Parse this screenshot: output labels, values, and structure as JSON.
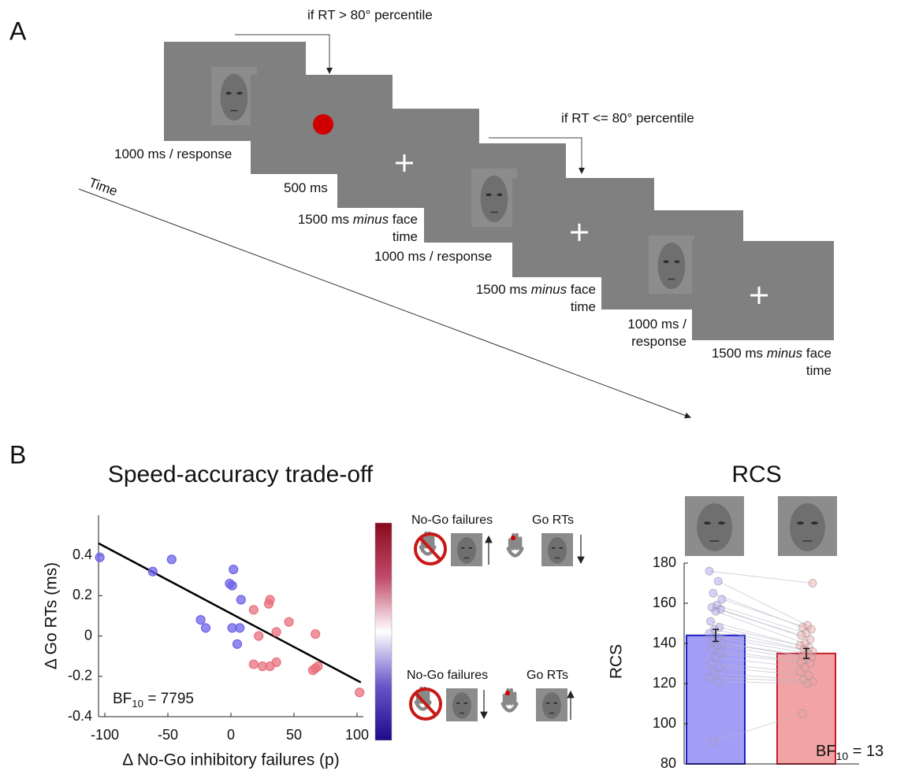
{
  "panel_a": {
    "label": "A",
    "conditions": [
      "if RT > 80° percentile",
      "if RT <= 80° percentile"
    ],
    "time_label": "Time",
    "captions": [
      {
        "lines": [
          [
            {
              "text": "1000 ms / response"
            }
          ]
        ]
      },
      {
        "lines": [
          [
            {
              "text": "500 ms"
            }
          ]
        ]
      },
      {
        "lines": [
          [
            {
              "text": "1500 ms "
            },
            {
              "text": "minus",
              "italic": true
            },
            {
              "text": " face"
            }
          ],
          [
            {
              "text": "time"
            }
          ]
        ]
      },
      {
        "lines": [
          [
            {
              "text": "1000 ms / response"
            }
          ]
        ]
      },
      {
        "lines": [
          [
            {
              "text": "1500 ms "
            },
            {
              "text": "minus",
              "italic": true
            },
            {
              "text": " face"
            }
          ],
          [
            {
              "text": "time"
            }
          ]
        ]
      },
      {
        "lines": [
          [
            {
              "text": "1000 ms /"
            }
          ],
          [
            {
              "text": "response"
            }
          ]
        ]
      },
      {
        "lines": [
          [
            {
              "text": "1500 ms "
            },
            {
              "text": "minus",
              "italic": true
            },
            {
              "text": " face"
            }
          ],
          [
            {
              "text": "time"
            }
          ]
        ]
      }
    ]
  },
  "panel_b": {
    "label": "B",
    "legend": [
      {
        "left": "No-Go failures",
        "right": "Go RTs"
      },
      {
        "left": "No-Go failures",
        "right": "Go RTs"
      }
    ]
  },
  "chart_data": [
    {
      "type": "scatter",
      "title": "Speed-accuracy trade-off",
      "x_label": "Δ No-Go inhibitory failures (p)",
      "y_label": "Δ Go RTs (ms)",
      "series": [
        {
          "color": "#6d63e8",
          "x": [
            -104,
            -62,
            -47,
            2,
            -1,
            1,
            8,
            -24,
            -20,
            1,
            7,
            5
          ],
          "values": [
            0.39,
            0.32,
            0.38,
            0.33,
            0.26,
            0.25,
            0.18,
            0.08,
            0.04,
            0.04,
            0.04,
            -0.04
          ]
        },
        {
          "color": "#e8707e",
          "x": [
            31,
            30,
            18,
            22,
            36,
            46,
            67,
            18,
            25,
            31,
            36,
            65,
            67,
            69,
            102
          ],
          "values": [
            0.18,
            0.16,
            0.13,
            0.0,
            0.02,
            0.07,
            0.01,
            -0.14,
            -0.15,
            -0.15,
            -0.13,
            -0.17,
            -0.16,
            -0.15,
            -0.28
          ]
        }
      ],
      "fit_line": {
        "x": [
          -105,
          103
        ],
        "values": [
          0.46,
          -0.23
        ],
        "color": "#000000"
      },
      "xlim": [
        -105,
        105
      ],
      "ylim": [
        -0.4,
        0.6
      ],
      "xticks": [
        -100,
        -50,
        0,
        50,
        100
      ],
      "yticks": [
        -0.4,
        -0.2,
        0,
        0.2,
        0.4
      ],
      "colorbar": [
        "#1c0a8c",
        "#6a55c8",
        "#ffffff",
        "#c04a6a",
        "#8a0a1c"
      ],
      "annotation": {
        "text": "BF",
        "subscript": "10",
        "suffix": " = 7795"
      }
    },
    {
      "type": "bar",
      "title": "RCS",
      "y_label": "RCS",
      "categories": [
        null,
        null
      ],
      "values": [
        144,
        135
      ],
      "errors": [
        3,
        2.5
      ],
      "colors": [
        "#a39ef5",
        "#f2a3a3"
      ],
      "edge_colors": [
        "#1c1cc4",
        "#c41c2c"
      ],
      "ylim": [
        80,
        180
      ],
      "yticks": [
        80,
        100,
        120,
        140,
        160,
        180
      ],
      "subject_values": [
        [
          176,
          171,
          165,
          162,
          159,
          158,
          157,
          156,
          151,
          148,
          147,
          145,
          143,
          141,
          140,
          139,
          137,
          135,
          133,
          130,
          128,
          125,
          123,
          121,
          91
        ],
        [
          170,
          149,
          148,
          147,
          145,
          144,
          142,
          140,
          139,
          138,
          137,
          136,
          135,
          134,
          133,
          132,
          131,
          130,
          128,
          126,
          124,
          122,
          121,
          120,
          105
        ]
      ],
      "annotation": {
        "text": "BF",
        "subscript": "10",
        "suffix": " = 13"
      }
    }
  ]
}
